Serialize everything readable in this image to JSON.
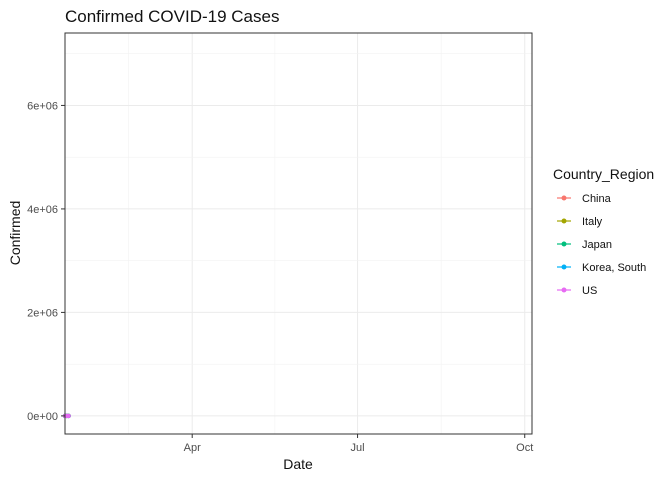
{
  "chart_data": {
    "type": "line",
    "title": "Confirmed COVID-19 Cases",
    "xlabel": "Date",
    "ylabel": "Confirmed",
    "x_ticks": [
      "Apr",
      "Jul",
      "Oct"
    ],
    "y_ticks": [
      "0e+00",
      "2e+06",
      "4e+06",
      "6e+06"
    ],
    "y_tick_values": [
      0,
      2000000,
      4000000,
      6000000
    ],
    "x_start": "2020-01-22",
    "x_end": "2020-10-05",
    "x_tick_dates": [
      "2020-04-01",
      "2020-07-01",
      "2020-10-01"
    ],
    "ylim": [
      -350000,
      7400000
    ],
    "grid": true,
    "legend": {
      "title": "Country_Region",
      "position": "right"
    },
    "series": [
      {
        "name": "China",
        "color": "#F8766D",
        "x": [
          "2020-01-22",
          "2020-01-23",
          "2020-01-24"
        ],
        "y": [
          548,
          643,
          920
        ]
      },
      {
        "name": "Italy",
        "color": "#A3A500",
        "x": [
          "2020-01-22",
          "2020-01-23",
          "2020-01-24"
        ],
        "y": [
          0,
          0,
          0
        ]
      },
      {
        "name": "Japan",
        "color": "#00BF7D",
        "x": [
          "2020-01-22",
          "2020-01-23",
          "2020-01-24"
        ],
        "y": [
          2,
          2,
          2
        ]
      },
      {
        "name": "Korea, South",
        "color": "#00B0F6",
        "x": [
          "2020-01-22",
          "2020-01-23",
          "2020-01-24"
        ],
        "y": [
          1,
          1,
          2
        ]
      },
      {
        "name": "US",
        "color": "#E76BF3",
        "x": [
          "2020-01-22",
          "2020-01-23",
          "2020-01-24"
        ],
        "y": [
          1,
          1,
          2
        ]
      }
    ]
  }
}
